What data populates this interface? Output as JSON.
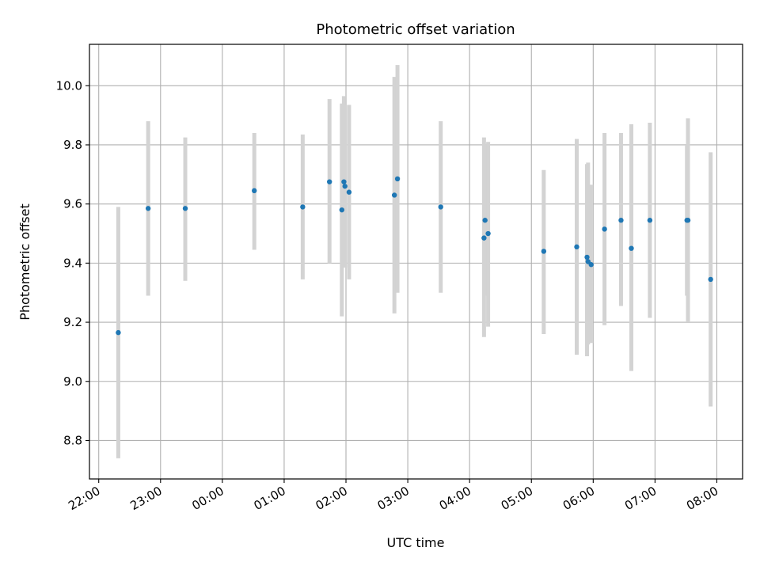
{
  "chart_data": {
    "type": "scatter",
    "title": "Photometric offset variation",
    "xlabel": "UTC time",
    "ylabel": "Photometric offset",
    "grid": true,
    "xlim": [
      "21:51",
      "08:25"
    ],
    "ylim": [
      8.67,
      10.14
    ],
    "x_ticks": [
      "22:00",
      "23:00",
      "00:00",
      "01:00",
      "02:00",
      "03:00",
      "04:00",
      "05:00",
      "06:00",
      "07:00",
      "08:00"
    ],
    "y_ticks": [
      8.8,
      9.0,
      9.2,
      9.4,
      9.6,
      9.8,
      10.0
    ],
    "colors": {
      "points": "#1f77b4",
      "error_bars": "#d3d3d3",
      "grid": "#b0b0b0"
    },
    "series": [
      {
        "points": [
          {
            "x": "22:19",
            "y": 9.165,
            "low": 8.74,
            "high": 9.59
          },
          {
            "x": "22:48",
            "y": 9.585,
            "low": 9.29,
            "high": 9.88
          },
          {
            "x": "23:24",
            "y": 9.585,
            "low": 9.34,
            "high": 9.825
          },
          {
            "x": "00:31",
            "y": 9.645,
            "low": 9.445,
            "high": 9.84
          },
          {
            "x": "01:18",
            "y": 9.59,
            "low": 9.345,
            "high": 9.835
          },
          {
            "x": "01:44",
            "y": 9.675,
            "low": 9.4,
            "high": 9.955
          },
          {
            "x": "01:56",
            "y": 9.58,
            "low": 9.22,
            "high": 9.94
          },
          {
            "x": "01:58",
            "y": 9.675,
            "low": 9.385,
            "high": 9.965
          },
          {
            "x": "01:59",
            "y": 9.66,
            "low": 9.385,
            "high": 9.935
          },
          {
            "x": "02:03",
            "y": 9.64,
            "low": 9.345,
            "high": 9.935
          },
          {
            "x": "02:47",
            "y": 9.63,
            "low": 9.23,
            "high": 10.03
          },
          {
            "x": "02:50",
            "y": 9.685,
            "low": 9.3,
            "high": 10.07
          },
          {
            "x": "03:32",
            "y": 9.59,
            "low": 9.3,
            "high": 9.88
          },
          {
            "x": "04:14",
            "y": 9.485,
            "low": 9.15,
            "high": 9.825
          },
          {
            "x": "04:15",
            "y": 9.545,
            "low": 9.29,
            "high": 9.8
          },
          {
            "x": "04:18",
            "y": 9.5,
            "low": 9.185,
            "high": 9.81
          },
          {
            "x": "05:12",
            "y": 9.44,
            "low": 9.16,
            "high": 9.715
          },
          {
            "x": "05:44",
            "y": 9.455,
            "low": 9.09,
            "high": 9.82
          },
          {
            "x": "05:54",
            "y": 9.42,
            "low": 9.085,
            "high": 9.735
          },
          {
            "x": "05:55",
            "y": 9.405,
            "low": 9.125,
            "high": 9.74
          },
          {
            "x": "05:58",
            "y": 9.395,
            "low": 9.13,
            "high": 9.665
          },
          {
            "x": "06:11",
            "y": 9.515,
            "low": 9.19,
            "high": 9.84
          },
          {
            "x": "06:27",
            "y": 9.545,
            "low": 9.255,
            "high": 9.84
          },
          {
            "x": "06:37",
            "y": 9.45,
            "low": 9.035,
            "high": 9.87
          },
          {
            "x": "06:55",
            "y": 9.545,
            "low": 9.215,
            "high": 9.875
          },
          {
            "x": "07:31",
            "y": 9.545,
            "low": 9.29,
            "high": 9.8
          },
          {
            "x": "07:32",
            "y": 9.545,
            "low": 9.2,
            "high": 9.89
          },
          {
            "x": "07:54",
            "y": 9.345,
            "low": 8.915,
            "high": 9.775
          }
        ]
      }
    ]
  }
}
